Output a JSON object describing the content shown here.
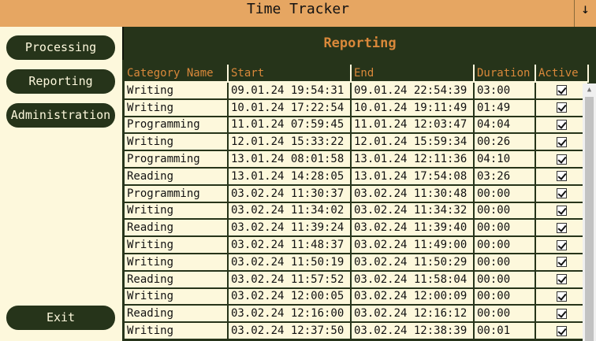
{
  "window": {
    "title": "Time Tracker",
    "collapse_glyph": "↓"
  },
  "nav": {
    "processing": "Processing",
    "reporting": "Reporting",
    "administration": "Administration",
    "exit": "Exit"
  },
  "panel": {
    "title": "Reporting"
  },
  "table": {
    "columns": [
      "Category Name",
      "Start",
      "End",
      "Duration",
      "Active"
    ],
    "rows": [
      [
        "Writing",
        "09.01.24 19:54:31",
        "09.01.24 22:54:39",
        "03:00",
        true
      ],
      [
        "Writing",
        "10.01.24 17:22:54",
        "10.01.24 19:11:49",
        "01:49",
        true
      ],
      [
        "Programming",
        "11.01.24 07:59:45",
        "11.01.24 12:03:47",
        "04:04",
        true
      ],
      [
        "Writing",
        "12.01.24 15:33:22",
        "12.01.24 15:59:34",
        "00:26",
        true
      ],
      [
        "Programming",
        "13.01.24 08:01:58",
        "13.01.24 12:11:36",
        "04:10",
        true
      ],
      [
        "Reading",
        "13.01.24 14:28:05",
        "13.01.24 17:54:08",
        "03:26",
        true
      ],
      [
        "Programming",
        "03.02.24 11:30:37",
        "03.02.24 11:30:48",
        "00:00",
        true
      ],
      [
        "Writing",
        "03.02.24 11:34:02",
        "03.02.24 11:34:32",
        "00:00",
        true
      ],
      [
        "Reading",
        "03.02.24 11:39:24",
        "03.02.24 11:39:40",
        "00:00",
        true
      ],
      [
        "Writing",
        "03.02.24 11:48:37",
        "03.02.24 11:49:00",
        "00:00",
        true
      ],
      [
        "Writing",
        "03.02.24 11:50:19",
        "03.02.24 11:50:29",
        "00:00",
        true
      ],
      [
        "Reading",
        "03.02.24 11:57:52",
        "03.02.24 11:58:04",
        "00:00",
        true
      ],
      [
        "Writing",
        "03.02.24 12:00:05",
        "03.02.24 12:00:09",
        "00:00",
        true
      ],
      [
        "Reading",
        "03.02.24 12:16:00",
        "03.02.24 12:16:12",
        "00:00",
        true
      ],
      [
        "Writing",
        "03.02.24 12:37:50",
        "03.02.24 12:38:39",
        "00:01",
        true
      ]
    ]
  },
  "colors": {
    "title_bar": "#e6a662",
    "dark_green": "#26341a",
    "accent_orange": "#d9883a",
    "cream": "#fdf8dc"
  }
}
